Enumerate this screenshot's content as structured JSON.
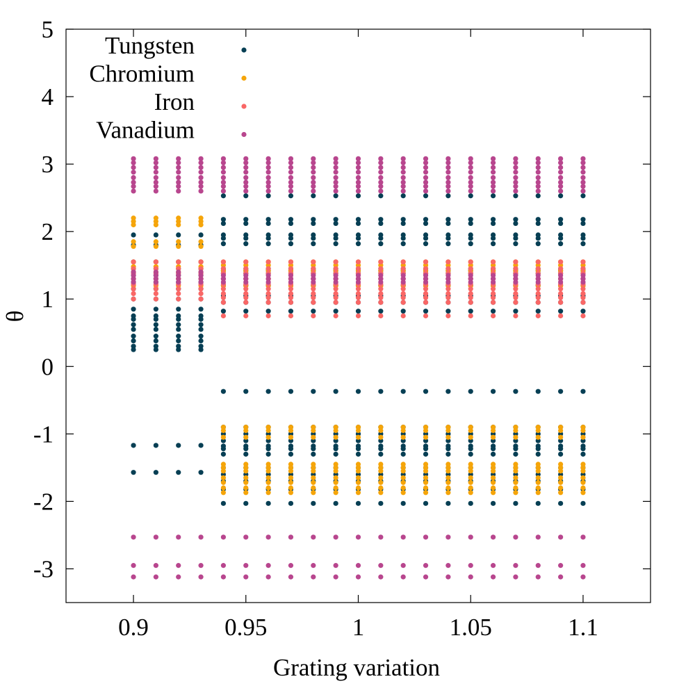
{
  "chart_data": {
    "type": "scatter",
    "title": "",
    "xlabel": "Grating variation",
    "ylabel": "θ",
    "xlim": [
      0.87,
      1.13
    ],
    "ylim": [
      -3.5,
      5
    ],
    "xticks": [
      "0.9",
      "0.95",
      "1",
      "1.05",
      "1.1"
    ],
    "yticks": [
      "-3",
      "-2",
      "-1",
      "0",
      "1",
      "2",
      "3",
      "4",
      "5"
    ],
    "grid": false,
    "legend_position": "top-left",
    "x_values": [
      0.9,
      0.91,
      0.92,
      0.93,
      0.94,
      0.95,
      0.96,
      0.97,
      0.98,
      0.99,
      1.0,
      1.01,
      1.02,
      1.03,
      1.04,
      1.05,
      1.06,
      1.07,
      1.08,
      1.09,
      1.1
    ],
    "series": [
      {
        "name": "Tungsten",
        "color": "#073f54",
        "points_by_x_range": [
          {
            "x_from": 0.9,
            "x_to": 0.93,
            "y": [
              1.95,
              1.8,
              1.55,
              1.45,
              1.35,
              1.25,
              1.15,
              1.0,
              0.85,
              0.75,
              0.7,
              0.62,
              0.55,
              0.45,
              0.38,
              0.3,
              0.25,
              -1.17,
              -1.57
            ]
          },
          {
            "x_from": 0.94,
            "x_to": 1.1,
            "y": [
              2.53,
              2.18,
              2.12,
              1.95,
              1.9,
              1.82,
              1.45,
              1.42,
              1.38,
              1.2,
              1.05,
              0.95,
              0.82,
              -0.37,
              -0.9,
              -1.0,
              -1.1,
              -1.18,
              -1.22,
              -1.3,
              -1.5,
              -1.6,
              -1.7,
              -1.82,
              -2.03
            ]
          }
        ]
      },
      {
        "name": "Chromium",
        "color": "#f5a50a",
        "points_by_x_range": [
          {
            "x_from": 0.9,
            "x_to": 0.93,
            "y": [
              2.2,
              2.15,
              2.1,
              1.85,
              1.78,
              1.55,
              1.48,
              1.4,
              1.3,
              1.2
            ]
          },
          {
            "x_from": 0.94,
            "x_to": 1.1,
            "y": [
              1.55,
              1.5,
              1.42,
              1.3,
              1.2,
              -0.9,
              -0.95,
              -1.05,
              -1.45,
              -1.5,
              -1.55,
              -1.65,
              -1.72,
              -1.8,
              -1.87
            ]
          }
        ]
      },
      {
        "name": "Iron",
        "color": "#f96766",
        "points_by_x_range": [
          {
            "x_from": 0.9,
            "x_to": 0.93,
            "y": [
              1.55,
              1.45,
              1.38,
              1.3,
              1.22,
              1.15,
              1.08,
              1.0
            ]
          },
          {
            "x_from": 0.94,
            "x_to": 1.1,
            "y": [
              1.55,
              1.45,
              1.38,
              1.3,
              1.22,
              1.15,
              1.08,
              1.02,
              0.95,
              0.75
            ]
          }
        ]
      },
      {
        "name": "Vanadium",
        "color": "#b8468e",
        "points_by_x_range": [
          {
            "x_from": 0.9,
            "x_to": 0.93,
            "y": [
              3.08,
              3.02,
              2.95,
              2.88,
              2.8,
              2.73,
              2.67,
              2.6,
              1.4,
              1.35,
              1.3,
              1.25,
              -2.53,
              -2.95,
              -3.12
            ]
          },
          {
            "x_from": 0.94,
            "x_to": 1.1,
            "y": [
              3.08,
              3.02,
              2.95,
              2.88,
              2.8,
              2.73,
              2.67,
              2.6,
              1.35,
              1.3,
              1.25,
              -2.53,
              -2.95,
              -3.12
            ]
          }
        ]
      }
    ]
  }
}
